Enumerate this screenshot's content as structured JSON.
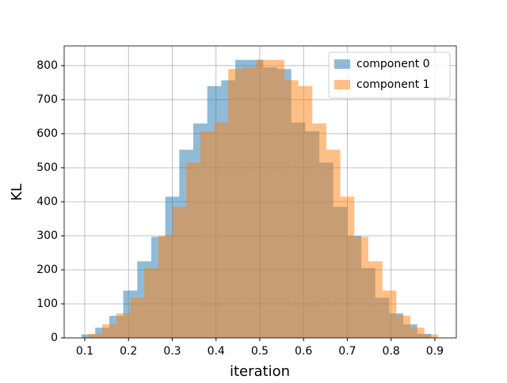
{
  "chart_data": {
    "type": "histogram",
    "xlabel": "iteration",
    "ylabel": "KL",
    "series": [
      {
        "name": "component 0",
        "color": "#1f77b4",
        "bins": [
          0.092,
          0.124,
          0.156,
          0.188,
          0.22,
          0.252,
          0.284,
          0.316,
          0.348,
          0.38,
          0.412,
          0.444,
          0.476,
          0.508,
          0.54,
          0.572,
          0.604,
          0.636,
          0.668,
          0.7,
          0.732,
          0.764,
          0.796,
          0.828,
          0.86,
          0.892
        ],
        "values": [
          10,
          30,
          65,
          139,
          225,
          297,
          415,
          553,
          630,
          740,
          757,
          817,
          817,
          795,
          790,
          633,
          607,
          515,
          385,
          300,
          205,
          118,
          72,
          40,
          12
        ]
      },
      {
        "name": "component 1",
        "color": "#ff7f0e",
        "bins": [
          0.108,
          0.14,
          0.172,
          0.204,
          0.236,
          0.268,
          0.3,
          0.332,
          0.364,
          0.396,
          0.428,
          0.46,
          0.492,
          0.524,
          0.556,
          0.588,
          0.62,
          0.652,
          0.684,
          0.716,
          0.748,
          0.78,
          0.812,
          0.844,
          0.876,
          0.908
        ],
        "values": [
          12,
          40,
          72,
          118,
          205,
          300,
          385,
          515,
          607,
          633,
          790,
          795,
          817,
          817,
          757,
          740,
          630,
          553,
          415,
          297,
          225,
          139,
          65,
          30,
          10
        ]
      }
    ],
    "xlim": [
      0.053,
      0.949
    ],
    "ylim": [
      0,
      858
    ],
    "xticks": [
      0.1,
      0.2,
      0.3,
      0.4,
      0.5,
      0.6,
      0.7,
      0.8,
      0.9
    ],
    "yticks": [
      0,
      100,
      200,
      300,
      400,
      500,
      600,
      700,
      800
    ],
    "grid": true,
    "legend": "upper right",
    "alpha": 0.5
  }
}
